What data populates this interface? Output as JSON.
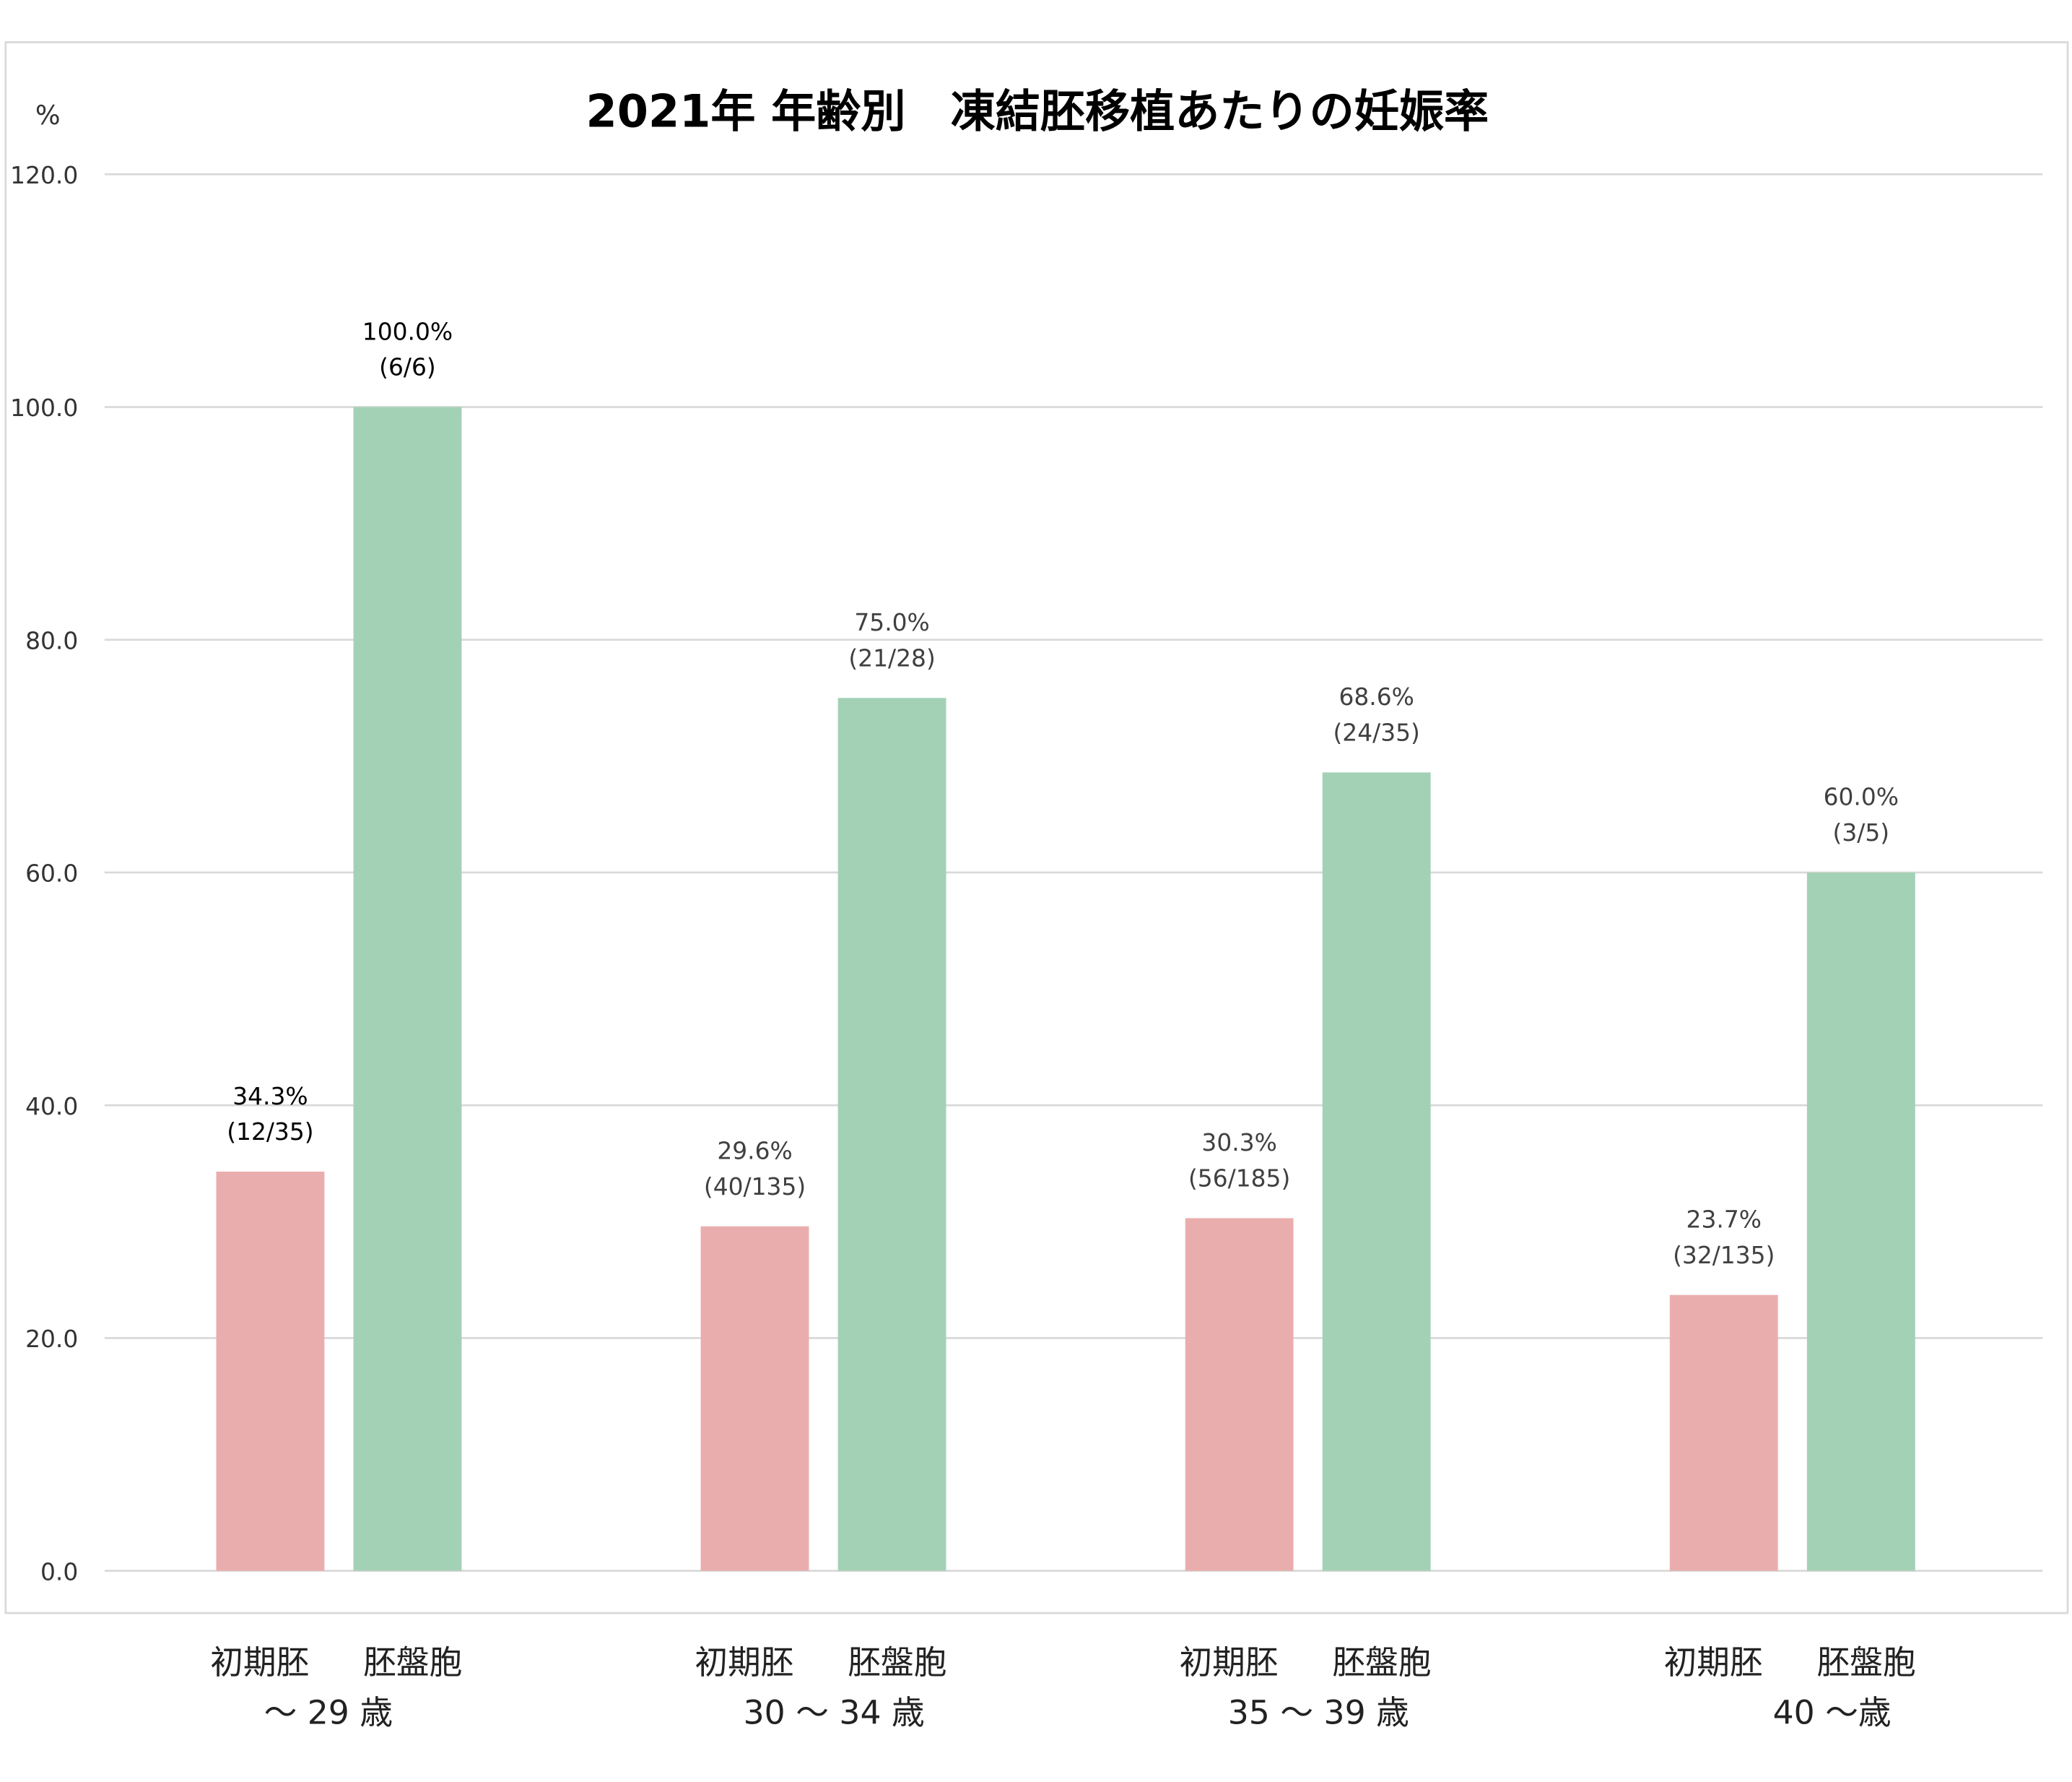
{
  "chart_data": {
    "type": "bar",
    "title": "2021年 年齢別　凍結胚移植あたりの妊娠率",
    "ylabel": "%",
    "xlabel": "",
    "ylim": [
      0,
      120
    ],
    "yticks": [
      "0.0",
      "20.0",
      "40.0",
      "60.0",
      "80.0",
      "100.0",
      "120.0"
    ],
    "grid": true,
    "categories": [
      "～ 29 歳",
      "30 ～ 34 歳",
      "35 ～ 39 歳",
      "40 ～歳"
    ],
    "sub_labels": [
      "初期胚",
      "胚盤胞"
    ],
    "series": [
      {
        "name": "初期胚",
        "color": "#eaadad",
        "values": [
          34.3,
          29.6,
          30.3,
          23.7
        ],
        "labels": [
          "34.3%",
          "29.6%",
          "30.3%",
          "23.7%"
        ],
        "counts": [
          "(12/35)",
          "(40/135)",
          "(56/185)",
          "(32/135)"
        ]
      },
      {
        "name": "胚盤胞",
        "color": "#a3d1b5",
        "values": [
          100.0,
          75.0,
          68.6,
          60.0
        ],
        "labels": [
          "100.0%",
          "75.0%",
          "68.6%",
          "60.0%"
        ],
        "counts": [
          "(6/6)",
          "(21/28)",
          "(24/35)",
          "(3/5)"
        ]
      }
    ]
  }
}
